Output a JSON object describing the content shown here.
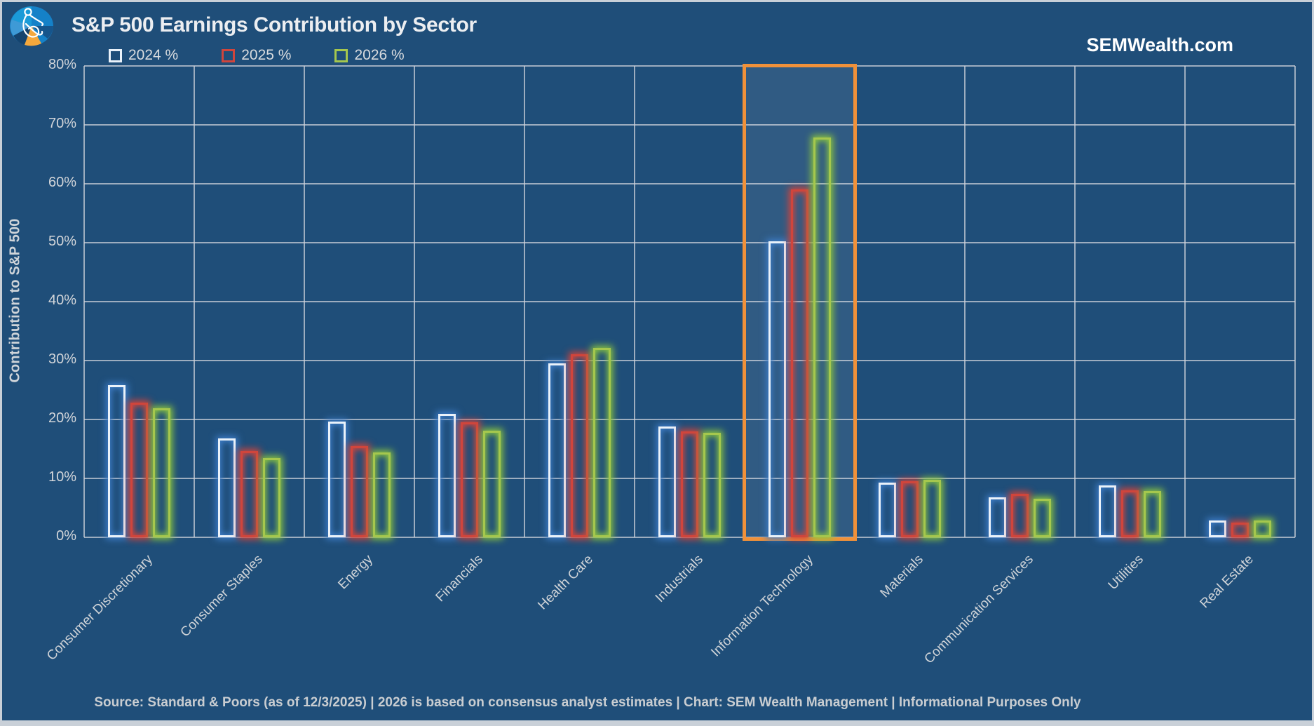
{
  "branding": {
    "website": "SEMWealth.com",
    "logo": "sem-pie-figure-logo"
  },
  "colors": {
    "background": "#1F4E79",
    "gridline": "#CED3D9",
    "text_light": "#D3D6DA",
    "title": "#ECEEF1",
    "highlight_border": "#F0913A",
    "highlight_fill": "rgba(255,255,255,0.08)"
  },
  "footer": {
    "text": "Source: Standard & Poors (as of 12/3/2025)  |  2026 is based on consensus analyst estimates  |  Chart: SEM Wealth Management  |  Informational Purposes Only"
  },
  "chart_data": {
    "type": "bar",
    "title": "S&P 500 Earnings Contribution by Sector",
    "xlabel": "",
    "ylabel": "Contribution to S&P 500",
    "ylim": [
      0,
      80
    ],
    "ytick_step": 10,
    "ytick_suffix": "%",
    "grid": true,
    "legend_position": "top-left",
    "categories": [
      "Consumer Discretionary",
      "Consumer Staples",
      "Energy",
      "Financials",
      "Health Care",
      "Industrials",
      "Information Technology",
      "Materials",
      "Communication Services",
      "Utilities",
      "Real Estate"
    ],
    "series": [
      {
        "name": "2024 %",
        "color": "#EAF2FA",
        "glow": "#3E7DC8",
        "values": [
          25.8,
          16.8,
          19.6,
          21.0,
          29.5,
          18.8,
          50.2,
          9.3,
          6.8,
          8.8,
          2.9
        ]
      },
      {
        "name": "2025 %",
        "color": "#D0453C",
        "glow": "#D0453C",
        "values": [
          22.9,
          14.7,
          15.5,
          19.5,
          31.1,
          18.0,
          59.0,
          9.5,
          7.4,
          8.0,
          2.5
        ]
      },
      {
        "name": "2026 %",
        "color": "#A5C74E",
        "glow": "#8CC63F",
        "values": [
          21.9,
          13.4,
          14.4,
          18.1,
          32.1,
          17.7,
          67.8,
          9.8,
          6.5,
          7.9,
          2.8
        ]
      }
    ],
    "highlight": {
      "category": "Information Technology",
      "color": "#F0913A"
    }
  }
}
